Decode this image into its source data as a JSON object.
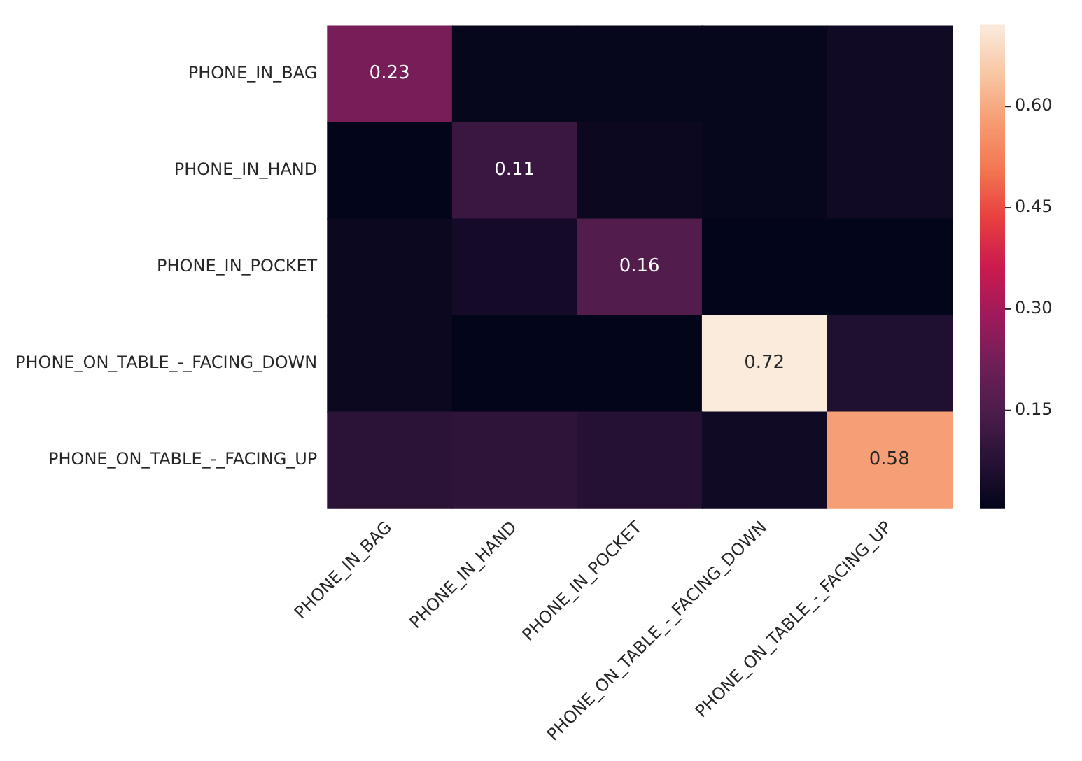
{
  "chart_data": {
    "type": "heatmap",
    "categories": [
      "PHONE_IN_BAG",
      "PHONE_IN_HAND",
      "PHONE_IN_POCKET",
      "PHONE_ON_TABLE_-_FACING_DOWN",
      "PHONE_ON_TABLE_-_FACING_UP"
    ],
    "y_categories": [
      "PHONE_IN_BAG",
      "PHONE_IN_HAND",
      "PHONE_IN_POCKET",
      "PHONE_ON_TABLE_-_FACING_DOWN",
      "PHONE_ON_TABLE_-_FACING_UP"
    ],
    "cells": [
      [
        0.23,
        0.01,
        0.01,
        0.01,
        0.03
      ],
      [
        0.005,
        0.11,
        0.02,
        0.01,
        0.03
      ],
      [
        0.02,
        0.04,
        0.16,
        0.005,
        0.005
      ],
      [
        0.02,
        0.005,
        0.005,
        0.72,
        0.06
      ],
      [
        0.08,
        0.09,
        0.07,
        0.03,
        0.58
      ]
    ],
    "cell_labels": [
      [
        "0.23",
        null,
        null,
        null,
        null
      ],
      [
        null,
        "0.11",
        null,
        null,
        null
      ],
      [
        null,
        null,
        "0.16",
        null,
        null
      ],
      [
        null,
        null,
        null,
        "0.72",
        null
      ],
      [
        null,
        null,
        null,
        null,
        "0.58"
      ]
    ],
    "clim": [
      0.005,
      0.72
    ],
    "cticks": [
      0.15,
      {
        "value": 0.3,
        "label": "0.30"
      },
      0.45,
      {
        "value": 0.6,
        "label": "0.60"
      }
    ]
  }
}
